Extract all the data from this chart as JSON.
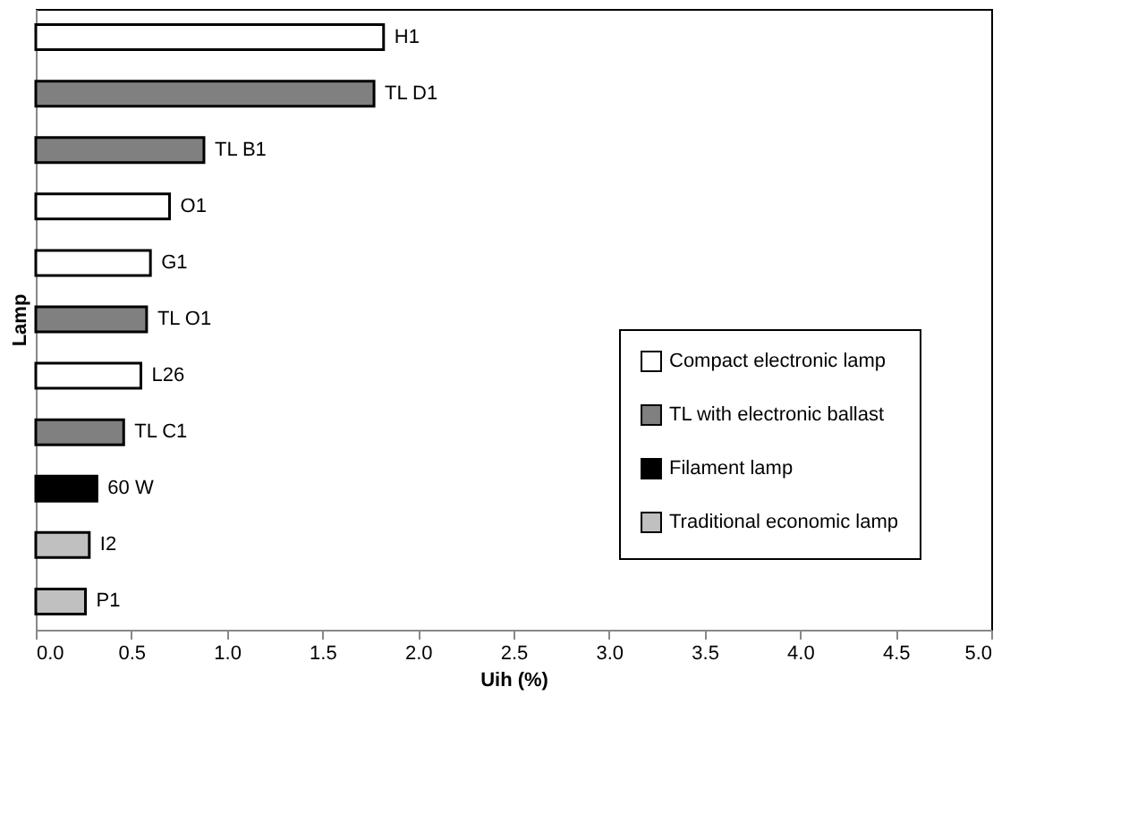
{
  "chart_data": {
    "type": "bar",
    "orientation": "horizontal",
    "xlabel": "Uih (%)",
    "ylabel": "Lamp",
    "categories": [
      "H1",
      "TL D1",
      "TL B1",
      "O1",
      "G1",
      "TL O1",
      "L26",
      "TL C1",
      "60 W",
      "I2",
      "P1"
    ],
    "series": [
      {
        "name": "Compact electronic lamp",
        "color": "#ffffff",
        "values": [
          1.82,
          null,
          null,
          0.7,
          0.6,
          null,
          0.55,
          null,
          null,
          null,
          null
        ]
      },
      {
        "name": "TL with electronic ballast",
        "color": "#808080",
        "values": [
          null,
          1.77,
          0.88,
          null,
          null,
          0.58,
          null,
          0.46,
          null,
          null,
          null
        ]
      },
      {
        "name": "Filament lamp",
        "color": "#000000",
        "values": [
          null,
          null,
          null,
          null,
          null,
          null,
          null,
          null,
          0.32,
          null,
          null
        ]
      },
      {
        "name": "Traditional economic lamp",
        "color": "#c0c0c0",
        "values": [
          null,
          null,
          null,
          null,
          null,
          null,
          null,
          null,
          null,
          0.28,
          0.26
        ]
      }
    ],
    "xlim": [
      0,
      5
    ],
    "xticks": [
      {
        "value": 0,
        "label": "0.0"
      },
      0.5,
      {
        "value": 1,
        "label": "1.0"
      },
      1.5,
      {
        "value": 2,
        "label": "2.0"
      },
      2.5,
      {
        "value": 3,
        "label": "3.0"
      },
      3.5,
      {
        "value": 4,
        "label": "4.0"
      },
      4.5,
      {
        "value": 5,
        "label": "5.0"
      }
    ],
    "tick_labels": "x",
    "grid": false,
    "legend": "bottom right"
  }
}
